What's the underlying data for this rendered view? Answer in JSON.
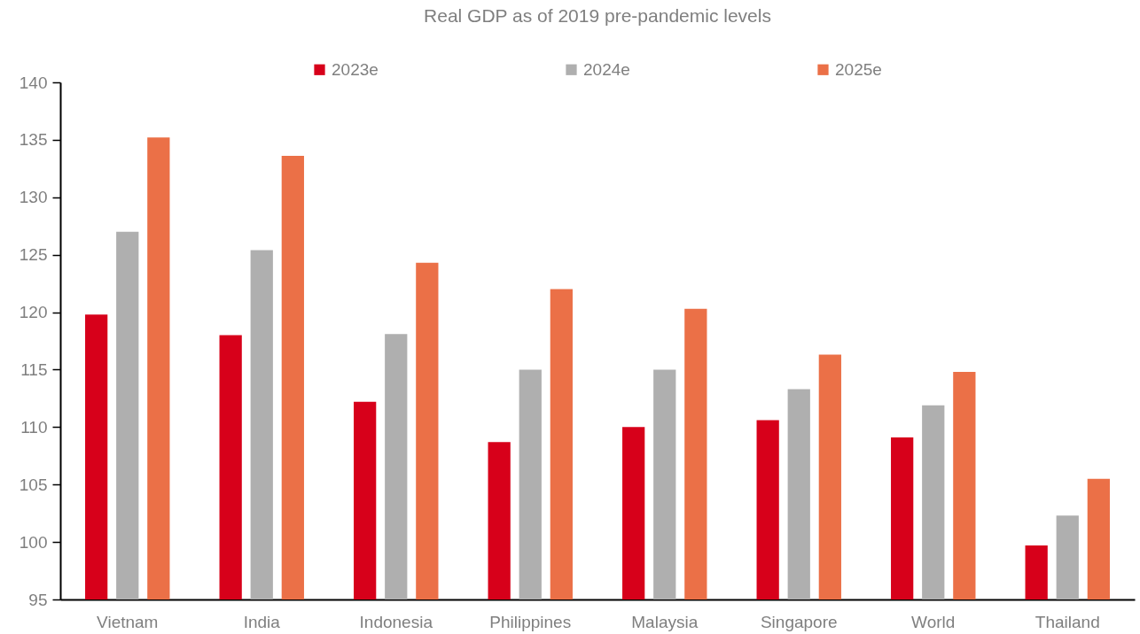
{
  "chart_data": {
    "type": "bar",
    "title": "Real GDP as of 2019 pre-pandemic levels",
    "categories": [
      "Vietnam",
      "India",
      "Indonesia",
      "Philippines",
      "Malaysia",
      "Singapore",
      "World",
      "Thailand"
    ],
    "series": [
      {
        "name": "2023e",
        "color": "#d7001a",
        "values": [
          119.8,
          118.0,
          112.2,
          108.7,
          110.0,
          110.6,
          109.1,
          99.7
        ]
      },
      {
        "name": "2024e",
        "color": "#afafaf",
        "values": [
          127.0,
          125.4,
          118.1,
          115.0,
          115.0,
          113.3,
          111.9,
          102.3
        ]
      },
      {
        "name": "2025e",
        "color": "#eb7047",
        "values": [
          135.2,
          133.6,
          124.3,
          122.0,
          120.3,
          116.3,
          114.8,
          105.5
        ]
      }
    ],
    "ylim": [
      95,
      140
    ],
    "yticks": [
      95,
      100,
      105,
      110,
      115,
      120,
      125,
      130,
      135,
      140
    ],
    "grid": false,
    "legend": "top"
  }
}
